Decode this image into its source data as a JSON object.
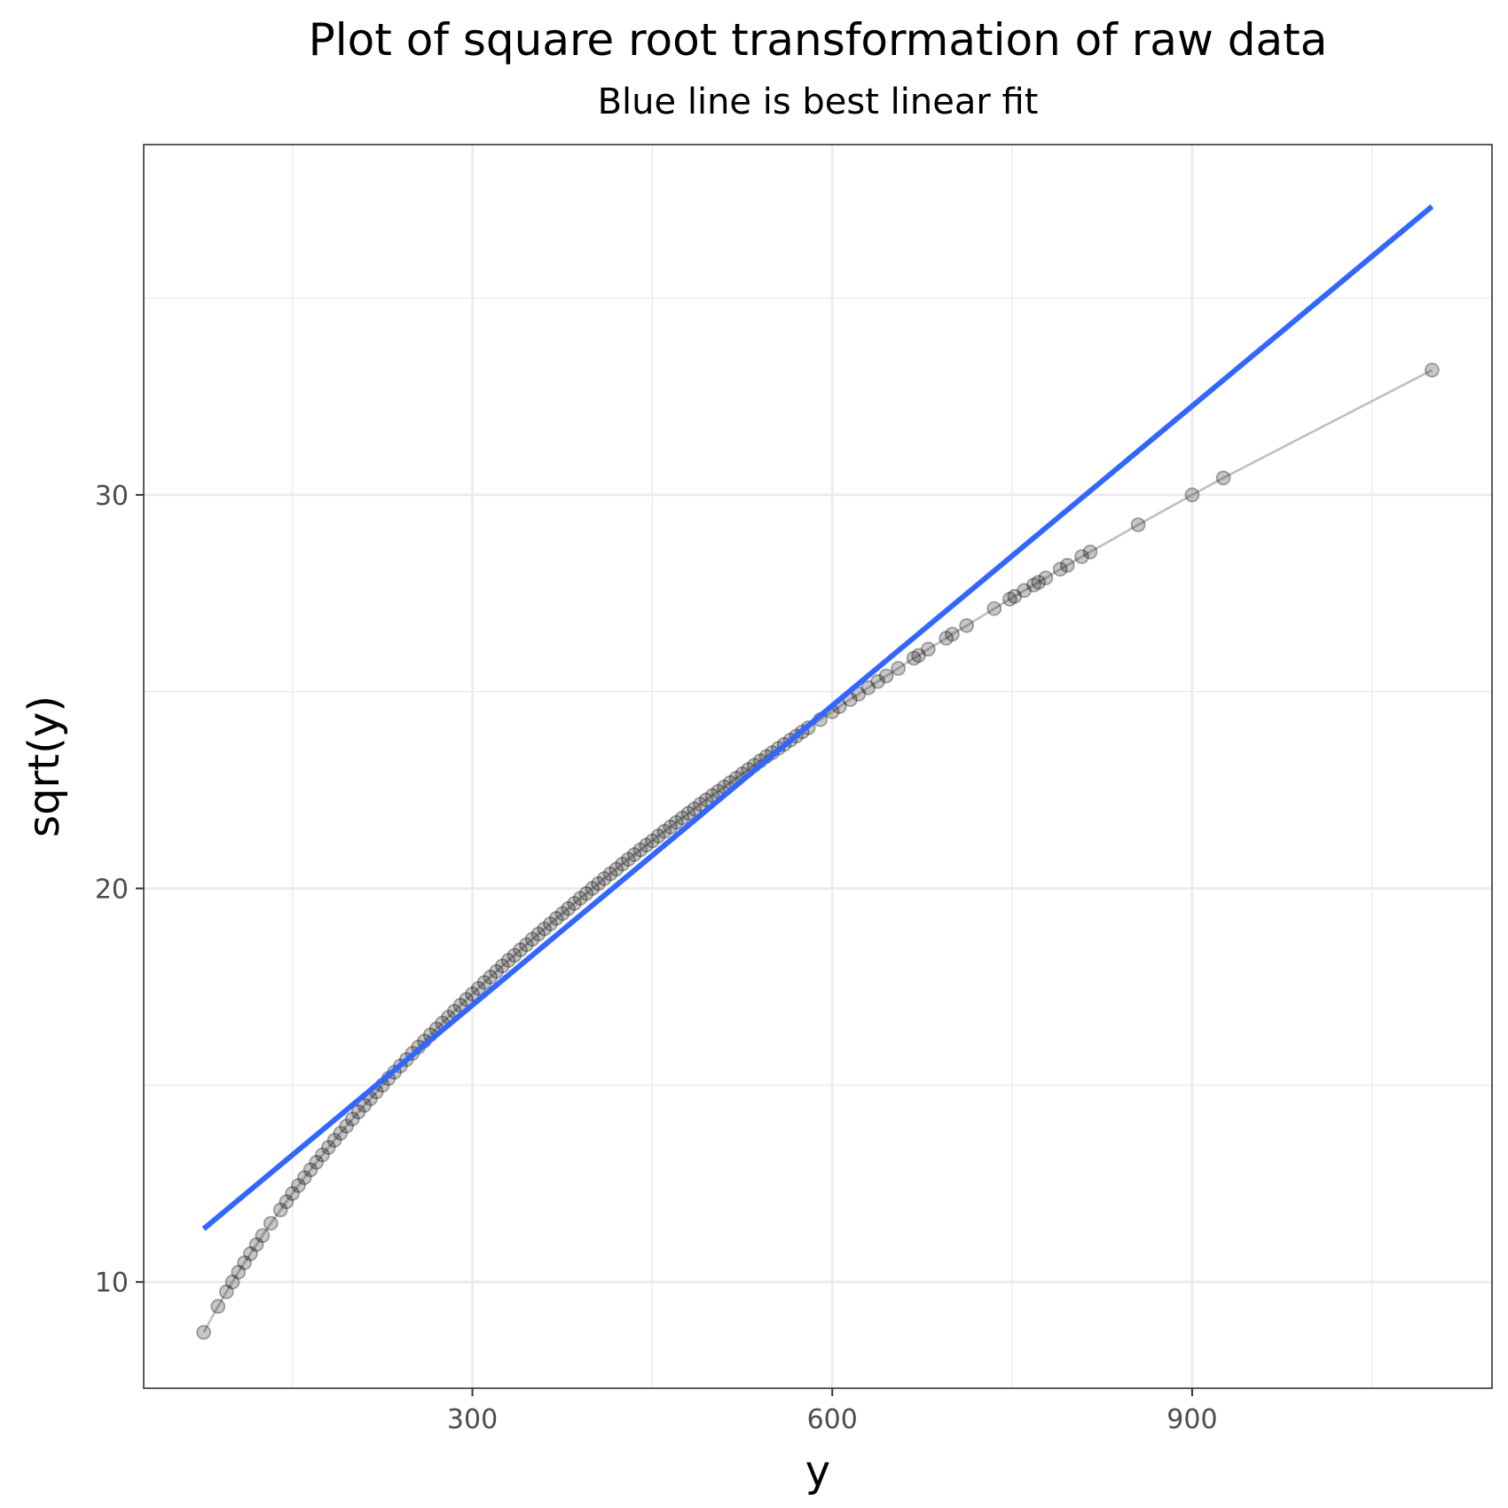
{
  "chart_data": {
    "type": "scatter",
    "title": "Plot of square root transformation of raw data",
    "subtitle": "Blue line is best linear fit",
    "xlabel": "y",
    "ylabel": "sqrt(y)",
    "xlim": [
      26,
      1150
    ],
    "ylim": [
      7.3,
      38.9
    ],
    "x_ticks": [
      300,
      600,
      900
    ],
    "y_ticks": [
      10,
      20,
      30
    ],
    "x_tick_labels": [
      "300",
      "600",
      "900"
    ],
    "y_tick_labels": [
      "10",
      "20",
      "30"
    ],
    "grid": true,
    "legend": "none",
    "colors": {
      "points": "#000000",
      "connecting_line": "#bfbfbf",
      "fit_line": "#3366ff",
      "grid": "#ebebeb",
      "panel_border": "#333333"
    },
    "series": [
      {
        "type": "scatter",
        "x": [
          76,
          88,
          95,
          100,
          105,
          110,
          115,
          120,
          125,
          132,
          140,
          145,
          150,
          155,
          160,
          165,
          170,
          175,
          180,
          185,
          190,
          195,
          200,
          205,
          210,
          215,
          220,
          225,
          230,
          235,
          240,
          245,
          250,
          255,
          260,
          265,
          270,
          275,
          280,
          285,
          290,
          295,
          300,
          305,
          310,
          315,
          320,
          325,
          330,
          335,
          340,
          345,
          350,
          355,
          360,
          365,
          370,
          375,
          380,
          385,
          390,
          395,
          400,
          405,
          410,
          415,
          420,
          425,
          430,
          435,
          440,
          445,
          450,
          455,
          460,
          465,
          470,
          475,
          480,
          485,
          490,
          495,
          500,
          505,
          510,
          515,
          520,
          525,
          530,
          535,
          540,
          545,
          550,
          555,
          560,
          565,
          570,
          575,
          580,
          590,
          600,
          606,
          615,
          622,
          630,
          638,
          645,
          655,
          668,
          672,
          680,
          695,
          700,
          712,
          735,
          748,
          752,
          760,
          768,
          772,
          778,
          790,
          796,
          808,
          815,
          855,
          900,
          926,
          1100
        ],
        "y": [
          8.72,
          9.38,
          9.75,
          10.0,
          10.25,
          10.49,
          10.72,
          10.95,
          11.18,
          11.49,
          11.83,
          12.04,
          12.25,
          12.45,
          12.65,
          12.85,
          13.04,
          13.23,
          13.42,
          13.6,
          13.78,
          13.96,
          14.14,
          14.32,
          14.49,
          14.66,
          14.83,
          15.0,
          15.17,
          15.33,
          15.49,
          15.65,
          15.81,
          15.97,
          16.12,
          16.28,
          16.43,
          16.58,
          16.73,
          16.88,
          17.03,
          17.18,
          17.32,
          17.46,
          17.61,
          17.75,
          17.89,
          18.03,
          18.17,
          18.3,
          18.44,
          18.57,
          18.71,
          18.84,
          18.97,
          19.1,
          19.24,
          19.36,
          19.49,
          19.62,
          19.75,
          19.87,
          20.0,
          20.12,
          20.25,
          20.37,
          20.49,
          20.62,
          20.74,
          20.86,
          20.98,
          21.1,
          21.21,
          21.33,
          21.45,
          21.56,
          21.68,
          21.79,
          21.91,
          22.02,
          22.14,
          22.25,
          22.36,
          22.47,
          22.58,
          22.69,
          22.8,
          22.91,
          23.02,
          23.13,
          23.24,
          23.35,
          23.45,
          23.56,
          23.66,
          23.77,
          23.87,
          23.98,
          24.08,
          24.29,
          24.49,
          24.62,
          24.8,
          24.94,
          25.1,
          25.26,
          25.4,
          25.59,
          25.85,
          25.92,
          26.08,
          26.36,
          26.46,
          26.68,
          27.11,
          27.35,
          27.42,
          27.57,
          27.71,
          27.78,
          27.89,
          28.11,
          28.21,
          28.43,
          28.55,
          29.24,
          30.0,
          30.43,
          33.17
        ]
      },
      {
        "type": "line",
        "name": "best linear fit",
        "x": [
          76,
          1100
        ],
        "y": [
          11.35,
          37.33
        ]
      }
    ]
  }
}
